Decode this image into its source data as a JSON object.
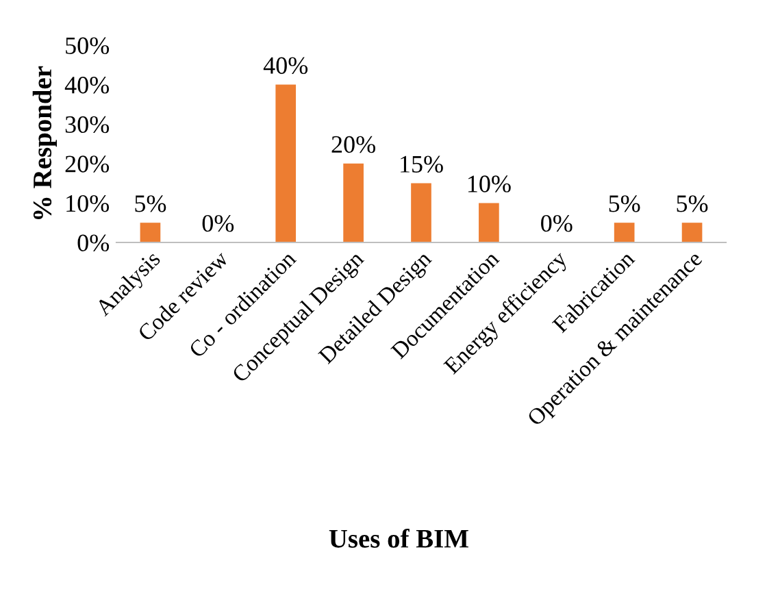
{
  "chart_data": {
    "type": "bar",
    "xlabel": "Uses of BIM",
    "ylabel": "% Responder",
    "categories": [
      "Analysis",
      "Code review",
      "Co - ordination",
      "Conceptual Design",
      "Detailed Design",
      "Documentation",
      "Energy efficiency",
      "Fabrication",
      "Operation & maintenance"
    ],
    "values": [
      5,
      0,
      40,
      20,
      15,
      10,
      0,
      5,
      5
    ],
    "value_labels": [
      "5%",
      "0%",
      "40%",
      "20%",
      "15%",
      "10%",
      "0%",
      "5%",
      "5%"
    ],
    "color": "#ed7d31",
    "ylim": [
      0,
      50
    ],
    "yticks": [
      {
        "value": 0,
        "label": "0%"
      },
      {
        "value": 10,
        "label": "10%"
      },
      {
        "value": 20,
        "label": "20%"
      },
      {
        "value": 30,
        "label": "30%"
      },
      {
        "value": 40,
        "label": "40%"
      },
      {
        "value": 50,
        "label": "50%"
      }
    ],
    "grid": false
  }
}
